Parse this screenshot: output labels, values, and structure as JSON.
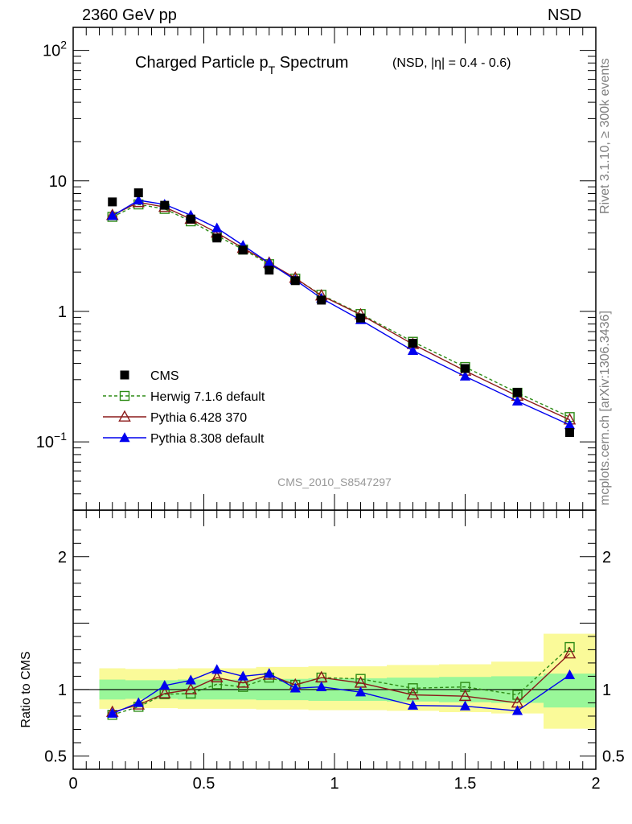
{
  "header": {
    "left": "2360 GeV pp",
    "right": "NSD"
  },
  "side_labels": {
    "rivet": "Rivet 3.1.10, ≥ 300k events",
    "source": "mcplots.cern.ch [arXiv:1306.3436]"
  },
  "colors": {
    "data": "#000000",
    "herwig": "#2e8b16",
    "pythia6": "#8b1a1a",
    "pythia8": "#0000ee",
    "band_inner": "#99f799",
    "band_outer": "#fafa99"
  },
  "chart_data": [
    {
      "type": "scatter",
      "title": "Charged Particle p",
      "title_sub": "T",
      "title_rest": " Spectrum",
      "title_note": "(NSD, |η| = 0.4 - 0.6)",
      "watermark": "CMS_2010_S8547297",
      "xlim": [
        0,
        2
      ],
      "ylim": [
        0.03,
        150
      ],
      "yscale": "log",
      "ytick_labels": [
        {
          "value": 0.1,
          "base": "10",
          "exp": "−1"
        },
        {
          "value": 1,
          "base": "1",
          "exp": ""
        },
        {
          "value": 10,
          "base": "10",
          "exp": ""
        },
        {
          "value": 100,
          "base": "10",
          "exp": "2"
        }
      ],
      "legend_position": "lower-left",
      "x": [
        0.15,
        0.25,
        0.35,
        0.45,
        0.55,
        0.65,
        0.75,
        0.85,
        0.95,
        1.1,
        1.3,
        1.5,
        1.7,
        1.9
      ],
      "series": [
        {
          "name": "CMS",
          "key": "data",
          "marker": "filled-square",
          "line": "none",
          "values": [
            6.9,
            8.1,
            6.5,
            5.1,
            3.65,
            2.95,
            2.07,
            1.72,
            1.22,
            0.89,
            0.57,
            0.365,
            0.24,
            0.118
          ]
        },
        {
          "name": "Herwig 7.1.6 default",
          "key": "herwig",
          "marker": "open-square",
          "line": "dashed",
          "values": [
            5.3,
            6.6,
            6.1,
            4.9,
            3.8,
            2.98,
            2.3,
            1.78,
            1.34,
            0.955,
            0.585,
            0.375,
            0.238,
            0.155
          ]
        },
        {
          "name": "Pythia 6.428 370",
          "key": "pythia6",
          "marker": "open-triangle",
          "line": "solid",
          "values": [
            5.45,
            6.85,
            6.3,
            5.1,
            4.0,
            3.05,
            2.35,
            1.8,
            1.32,
            0.945,
            0.56,
            0.35,
            0.225,
            0.148
          ]
        },
        {
          "name": "Pythia 8.308 default",
          "key": "pythia8",
          "marker": "filled-triangle",
          "line": "solid",
          "values": [
            5.4,
            7.1,
            6.6,
            5.45,
            4.35,
            3.2,
            2.35,
            1.74,
            1.26,
            0.86,
            0.5,
            0.318,
            0.205,
            0.135
          ]
        }
      ]
    },
    {
      "type": "scatter",
      "ylabel": "Ratio to CMS",
      "xlim": [
        0,
        2
      ],
      "ylim": [
        0.4,
        2.35
      ],
      "xtick_labels": [
        "0",
        "0.5",
        "1",
        "1.5",
        "2"
      ],
      "ytick_labels": [
        "0.5",
        "1",
        "2"
      ],
      "x": [
        0.15,
        0.25,
        0.35,
        0.45,
        0.55,
        0.65,
        0.75,
        0.85,
        0.95,
        1.1,
        1.3,
        1.5,
        1.7,
        1.9
      ],
      "band_x_edges": [
        0.1,
        0.2,
        0.3,
        0.4,
        0.5,
        0.6,
        0.7,
        0.8,
        0.9,
        1.0,
        1.2,
        1.4,
        1.6,
        1.8,
        2.0
      ],
      "band_inner": [
        [
          0.925,
          1.075
        ],
        [
          0.93,
          1.07
        ],
        [
          0.93,
          1.07
        ],
        [
          0.925,
          1.075
        ],
        [
          0.925,
          1.075
        ],
        [
          0.925,
          1.075
        ],
        [
          0.92,
          1.08
        ],
        [
          0.92,
          1.08
        ],
        [
          0.915,
          1.085
        ],
        [
          0.915,
          1.085
        ],
        [
          0.91,
          1.09
        ],
        [
          0.905,
          1.095
        ],
        [
          0.9,
          1.1
        ],
        [
          0.865,
          1.12
        ]
      ],
      "band_outer": [
        [
          0.855,
          1.16
        ],
        [
          0.86,
          1.155
        ],
        [
          0.86,
          1.155
        ],
        [
          0.855,
          1.16
        ],
        [
          0.855,
          1.16
        ],
        [
          0.855,
          1.16
        ],
        [
          0.85,
          1.17
        ],
        [
          0.85,
          1.17
        ],
        [
          0.845,
          1.175
        ],
        [
          0.845,
          1.175
        ],
        [
          0.84,
          1.185
        ],
        [
          0.83,
          1.19
        ],
        [
          0.82,
          1.21
        ],
        [
          0.705,
          1.42
        ]
      ],
      "series": [
        {
          "name": "Herwig 7.1.6 default",
          "key": "herwig",
          "marker": "open-square",
          "line": "dashed",
          "values": [
            0.81,
            0.87,
            0.965,
            0.97,
            1.04,
            1.02,
            1.09,
            1.035,
            1.09,
            1.08,
            1.01,
            1.02,
            0.96,
            1.32
          ]
        },
        {
          "name": "Pythia 6.428 370",
          "key": "pythia6",
          "marker": "open-triangle",
          "line": "solid",
          "values": [
            0.83,
            0.885,
            0.97,
            1.0,
            1.09,
            1.05,
            1.11,
            1.035,
            1.09,
            1.05,
            0.96,
            0.95,
            0.9,
            1.27
          ]
        },
        {
          "name": "Pythia 8.308 default",
          "key": "pythia8",
          "marker": "filled-triangle",
          "line": "solid",
          "values": [
            0.82,
            0.9,
            1.03,
            1.07,
            1.15,
            1.1,
            1.12,
            1.01,
            1.02,
            0.98,
            0.88,
            0.875,
            0.84,
            1.11
          ]
        }
      ]
    }
  ]
}
